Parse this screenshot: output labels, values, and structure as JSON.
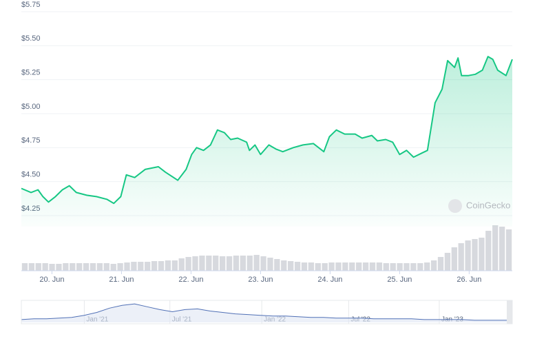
{
  "chart_data": {
    "type": "line",
    "watermark": "CoinGecko",
    "series": [
      {
        "color": "#16c784",
        "x": [
          19.56,
          19.7,
          19.8,
          19.87,
          19.95,
          20.05,
          20.15,
          20.25,
          20.35,
          20.5,
          20.64,
          20.79,
          20.89,
          20.99,
          21.07,
          21.19,
          21.34,
          21.53,
          21.63,
          21.81,
          21.93,
          22.01,
          22.08,
          22.18,
          22.28,
          22.38,
          22.48,
          22.57,
          22.67,
          22.8,
          22.84,
          22.92,
          23.0,
          23.12,
          23.22,
          23.32,
          23.47,
          23.61,
          23.76,
          23.91,
          23.99,
          24.09,
          24.21,
          24.36,
          24.46,
          24.6,
          24.68,
          24.8,
          24.9,
          25.0,
          25.1,
          25.2,
          25.32,
          25.4,
          25.51,
          25.61,
          25.69,
          25.79,
          25.84,
          25.89,
          25.99,
          26.09,
          26.19,
          26.27,
          26.34,
          26.41,
          26.53,
          26.62
        ],
        "values": [
          4.45,
          4.42,
          4.44,
          4.39,
          4.35,
          4.39,
          4.44,
          4.47,
          4.42,
          4.4,
          4.39,
          4.37,
          4.34,
          4.39,
          4.55,
          4.53,
          4.59,
          4.61,
          4.57,
          4.51,
          4.59,
          4.7,
          4.75,
          4.73,
          4.77,
          4.88,
          4.86,
          4.81,
          4.82,
          4.79,
          4.73,
          4.77,
          4.7,
          4.77,
          4.74,
          4.72,
          4.75,
          4.77,
          4.78,
          4.72,
          4.83,
          4.88,
          4.85,
          4.85,
          4.82,
          4.84,
          4.8,
          4.81,
          4.79,
          4.7,
          4.73,
          4.68,
          4.71,
          4.73,
          5.08,
          5.18,
          5.39,
          5.34,
          5.41,
          5.28,
          5.28,
          5.29,
          5.32,
          5.42,
          5.4,
          5.32,
          5.28,
          5.4
        ]
      }
    ],
    "xlim": [
      19.56,
      26.62
    ],
    "xticks": [
      {
        "value": 20,
        "label": "20. Jun"
      },
      {
        "value": 21,
        "label": "21. Jun"
      },
      {
        "value": 22,
        "label": "22. Jun"
      },
      {
        "value": 23,
        "label": "23. Jun"
      },
      {
        "value": 24,
        "label": "24. Jun"
      },
      {
        "value": 25,
        "label": "25. Jun"
      },
      {
        "value": 26,
        "label": "26. Jun"
      }
    ],
    "ylim": [
      4.17,
      5.8
    ],
    "yticks": [
      {
        "value": 4.25,
        "label": "$4.25"
      },
      {
        "value": 4.5,
        "label": "$4.50"
      },
      {
        "value": 4.75,
        "label": "$4.75"
      },
      {
        "value": 5.0,
        "label": "$5.00"
      },
      {
        "value": 5.25,
        "label": "$5.25"
      },
      {
        "value": 5.5,
        "label": "$5.50"
      },
      {
        "value": 5.75,
        "label": "$5.75"
      }
    ],
    "grid": true,
    "volume": [
      11,
      11,
      11,
      11,
      10,
      10,
      11,
      11,
      11,
      11,
      11,
      11,
      11,
      10,
      11,
      12,
      13,
      13,
      13,
      14,
      14,
      15,
      15,
      18,
      20,
      21,
      22,
      22,
      22,
      21,
      21,
      22,
      22,
      22,
      23,
      21,
      19,
      17,
      15,
      14,
      13,
      12,
      12,
      11,
      11,
      12,
      12,
      12,
      12,
      12,
      12,
      12,
      12,
      11,
      11,
      11,
      11,
      11,
      11,
      12,
      15,
      20,
      26,
      34,
      40,
      44,
      46,
      48,
      58,
      66,
      64,
      60
    ],
    "y2lim": [
      0,
      72
    ],
    "volume_color": "#d7d9de",
    "navigator": {
      "values": [
        4,
        5,
        5,
        6,
        7,
        10,
        14,
        20,
        24,
        26,
        22,
        18,
        15,
        18,
        19,
        16,
        14,
        12,
        11,
        10,
        9,
        9,
        8,
        7,
        7,
        6,
        6,
        6,
        5,
        5,
        5,
        5,
        4,
        4,
        4,
        4,
        3,
        3,
        3,
        3
      ],
      "ylim": [
        0,
        30
      ],
      "xticks": [
        {
          "value": 5.0,
          "label": "Jan '21"
        },
        {
          "value": 11.8,
          "label": "Jul '21"
        },
        {
          "value": 19.1,
          "label": "Jan '22"
        },
        {
          "value": 26.0,
          "label": "Jul '22"
        },
        {
          "value": 33.2,
          "label": "Jan '23"
        }
      ]
    }
  }
}
